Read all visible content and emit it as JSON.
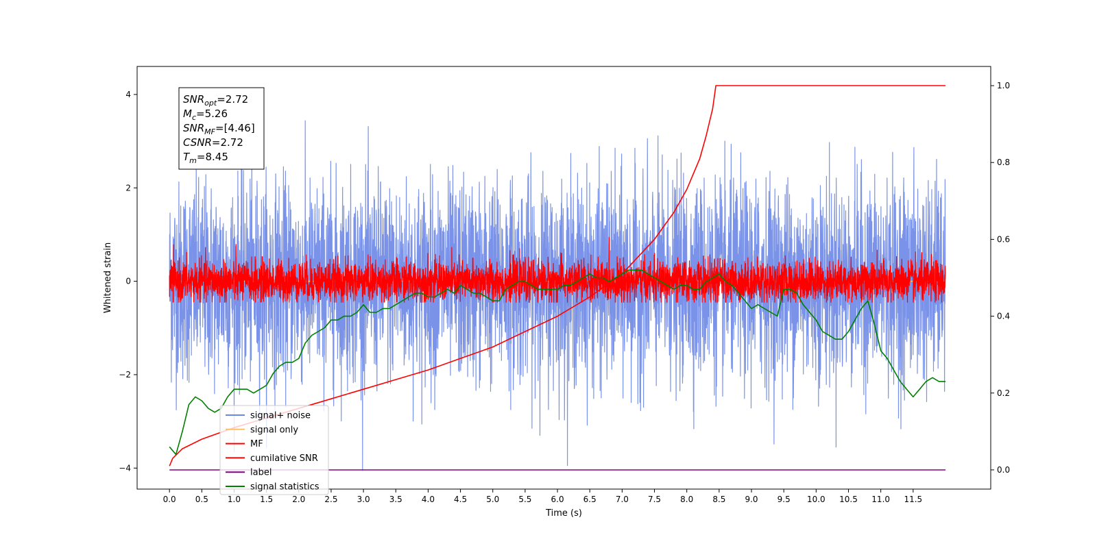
{
  "chart_data": {
    "type": "line",
    "xlabel": "Time (s)",
    "ylabel_left": "Whitened strain",
    "xlim": [
      -0.5,
      12.7
    ],
    "ylim_left": [
      -4.45,
      4.6
    ],
    "ylim_right": [
      -0.05,
      1.05
    ],
    "xticks": [
      "0.0",
      "0.5",
      "1.0",
      "1.5",
      "2.0",
      "2.5",
      "3.0",
      "3.5",
      "4.0",
      "4.5",
      "5.0",
      "5.5",
      "6.0",
      "6.5",
      "7.0",
      "7.5",
      "8.0",
      "8.5",
      "9.0",
      "9.5",
      "10.0",
      "10.5",
      "11.0",
      "11.5"
    ],
    "yticks_left": [
      "4",
      "2",
      "0",
      "−2",
      "−4"
    ],
    "yticks_right": [
      "1.0",
      "0.8",
      "0.6",
      "0.4",
      "0.2",
      "0.0"
    ],
    "grid": false,
    "legend_position": "lower-left",
    "annotation": [
      {
        "base": "SNR",
        "sub": "opt",
        "rest": "=2.72"
      },
      {
        "base": "M",
        "sub": "c",
        "rest": "=5.26"
      },
      {
        "base": "SNR",
        "sub": "MF",
        "rest": "=[4.46]"
      },
      {
        "base": "CSNR",
        "sub": "",
        "rest": "=2.72"
      },
      {
        "base": "T",
        "sub": "m",
        "rest": "=8.45"
      }
    ],
    "series": [
      {
        "name": "signal+ noise",
        "color": "#6b87e6",
        "axis": "left",
        "style": "noise",
        "x_range": [
          0.0,
          12.0
        ],
        "spread": 1.05,
        "offset": 0.0
      },
      {
        "name": "signal only",
        "color": "#ffbf66",
        "axis": "left",
        "style": "flat",
        "x_range": [
          0.0,
          12.0
        ],
        "value": 0.0
      },
      {
        "name": "MF",
        "color": "#ff0000",
        "axis": "left",
        "style": "noise",
        "x_range": [
          0.0,
          12.0
        ],
        "spread": 0.22,
        "offset": 0.0
      },
      {
        "name": "cumilative SNR",
        "color": "#ff0000",
        "axis": "right",
        "style": "line",
        "x": [
          0.0,
          0.05,
          0.2,
          0.5,
          1.0,
          1.5,
          2.0,
          2.5,
          3.0,
          3.5,
          4.0,
          4.5,
          5.0,
          5.5,
          6.0,
          6.5,
          7.0,
          7.5,
          7.8,
          8.0,
          8.2,
          8.3,
          8.4,
          8.45,
          12.0
        ],
        "y": [
          0.01,
          0.03,
          0.055,
          0.08,
          0.11,
          0.135,
          0.16,
          0.185,
          0.21,
          0.235,
          0.26,
          0.29,
          0.32,
          0.36,
          0.4,
          0.45,
          0.51,
          0.6,
          0.67,
          0.73,
          0.81,
          0.87,
          0.94,
          1.0,
          1.0
        ]
      },
      {
        "name": "label",
        "color": "#800080",
        "axis": "right",
        "style": "line",
        "x": [
          0.0,
          12.0
        ],
        "y": [
          0.0,
          0.0
        ]
      },
      {
        "name": "signal statistics",
        "color": "#008000",
        "axis": "right",
        "style": "line",
        "x": [
          0.0,
          0.1,
          0.2,
          0.3,
          0.4,
          0.5,
          0.6,
          0.7,
          0.8,
          0.9,
          1.0,
          1.1,
          1.2,
          1.3,
          1.4,
          1.5,
          1.6,
          1.7,
          1.8,
          1.9,
          2.0,
          2.1,
          2.2,
          2.3,
          2.4,
          2.5,
          2.6,
          2.7,
          2.8,
          2.9,
          3.0,
          3.1,
          3.2,
          3.3,
          3.4,
          3.5,
          3.6,
          3.7,
          3.8,
          3.9,
          4.0,
          4.1,
          4.2,
          4.3,
          4.4,
          4.5,
          4.6,
          4.7,
          4.8,
          4.9,
          5.0,
          5.1,
          5.2,
          5.3,
          5.4,
          5.5,
          5.6,
          5.7,
          5.8,
          5.9,
          6.0,
          6.1,
          6.2,
          6.3,
          6.4,
          6.5,
          6.6,
          6.7,
          6.8,
          6.9,
          7.0,
          7.1,
          7.2,
          7.3,
          7.4,
          7.5,
          7.6,
          7.7,
          7.8,
          7.9,
          8.0,
          8.1,
          8.2,
          8.3,
          8.4,
          8.5,
          8.6,
          8.7,
          8.8,
          8.9,
          9.0,
          9.1,
          9.2,
          9.3,
          9.4,
          9.5,
          9.6,
          9.7,
          9.8,
          9.9,
          10.0,
          10.1,
          10.2,
          10.3,
          10.4,
          10.5,
          10.6,
          10.7,
          10.8,
          10.9,
          11.0,
          11.1,
          11.2,
          11.3,
          11.4,
          11.5,
          11.6,
          11.7,
          11.8,
          11.9,
          12.0
        ],
        "y": [
          0.06,
          0.04,
          0.1,
          0.17,
          0.19,
          0.18,
          0.16,
          0.15,
          0.16,
          0.19,
          0.21,
          0.21,
          0.21,
          0.2,
          0.21,
          0.22,
          0.25,
          0.27,
          0.28,
          0.28,
          0.29,
          0.33,
          0.35,
          0.36,
          0.37,
          0.39,
          0.39,
          0.4,
          0.4,
          0.41,
          0.43,
          0.41,
          0.41,
          0.42,
          0.42,
          0.43,
          0.44,
          0.45,
          0.46,
          0.46,
          0.45,
          0.45,
          0.46,
          0.47,
          0.46,
          0.48,
          0.47,
          0.46,
          0.46,
          0.45,
          0.44,
          0.44,
          0.47,
          0.48,
          0.49,
          0.49,
          0.48,
          0.47,
          0.47,
          0.47,
          0.47,
          0.48,
          0.48,
          0.49,
          0.5,
          0.51,
          0.5,
          0.5,
          0.49,
          0.5,
          0.51,
          0.52,
          0.52,
          0.52,
          0.51,
          0.5,
          0.49,
          0.48,
          0.47,
          0.48,
          0.48,
          0.47,
          0.47,
          0.49,
          0.5,
          0.51,
          0.49,
          0.48,
          0.46,
          0.44,
          0.42,
          0.43,
          0.42,
          0.41,
          0.4,
          0.47,
          0.47,
          0.46,
          0.43,
          0.41,
          0.39,
          0.36,
          0.35,
          0.34,
          0.34,
          0.36,
          0.39,
          0.42,
          0.44,
          0.38,
          0.31,
          0.29,
          0.26,
          0.23,
          0.21,
          0.19,
          0.21,
          0.23,
          0.24,
          0.23,
          0.23
        ]
      }
    ]
  }
}
